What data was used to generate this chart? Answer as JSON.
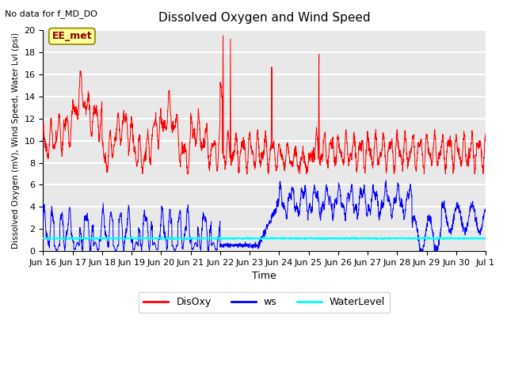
{
  "title": "Dissolved Oxygen and Wind Speed",
  "top_left_text": "No data for f_MD_DO",
  "annotation_box": "EE_met",
  "ylabel": "Dissolved Oxygen (mV), Wind Speed, Water Lvl (psi)",
  "xlabel": "Time",
  "ylim": [
    0,
    20
  ],
  "x_tick_labels": [
    "Jun 16",
    "Jun 17",
    "Jun 18",
    "Jun 19",
    "Jun 20",
    "Jun 21",
    "Jun 22",
    "Jun 23",
    "Jun 24",
    "Jun 25",
    "Jun 26",
    "Jun 27",
    "Jun 28",
    "Jun 29",
    "Jun 30",
    "Jul 1"
  ],
  "legend_labels": [
    "DisOxy",
    "ws",
    "WaterLevel"
  ],
  "line_colors": {
    "DisOxy": "red",
    "ws": "blue",
    "WaterLevel": "cyan"
  },
  "background_color": "#e8e8e8",
  "grid_color": "white",
  "annotation_facecolor": "#ffff99",
  "annotation_edgecolor": "#888800",
  "annotation_textcolor": "#8b0000"
}
